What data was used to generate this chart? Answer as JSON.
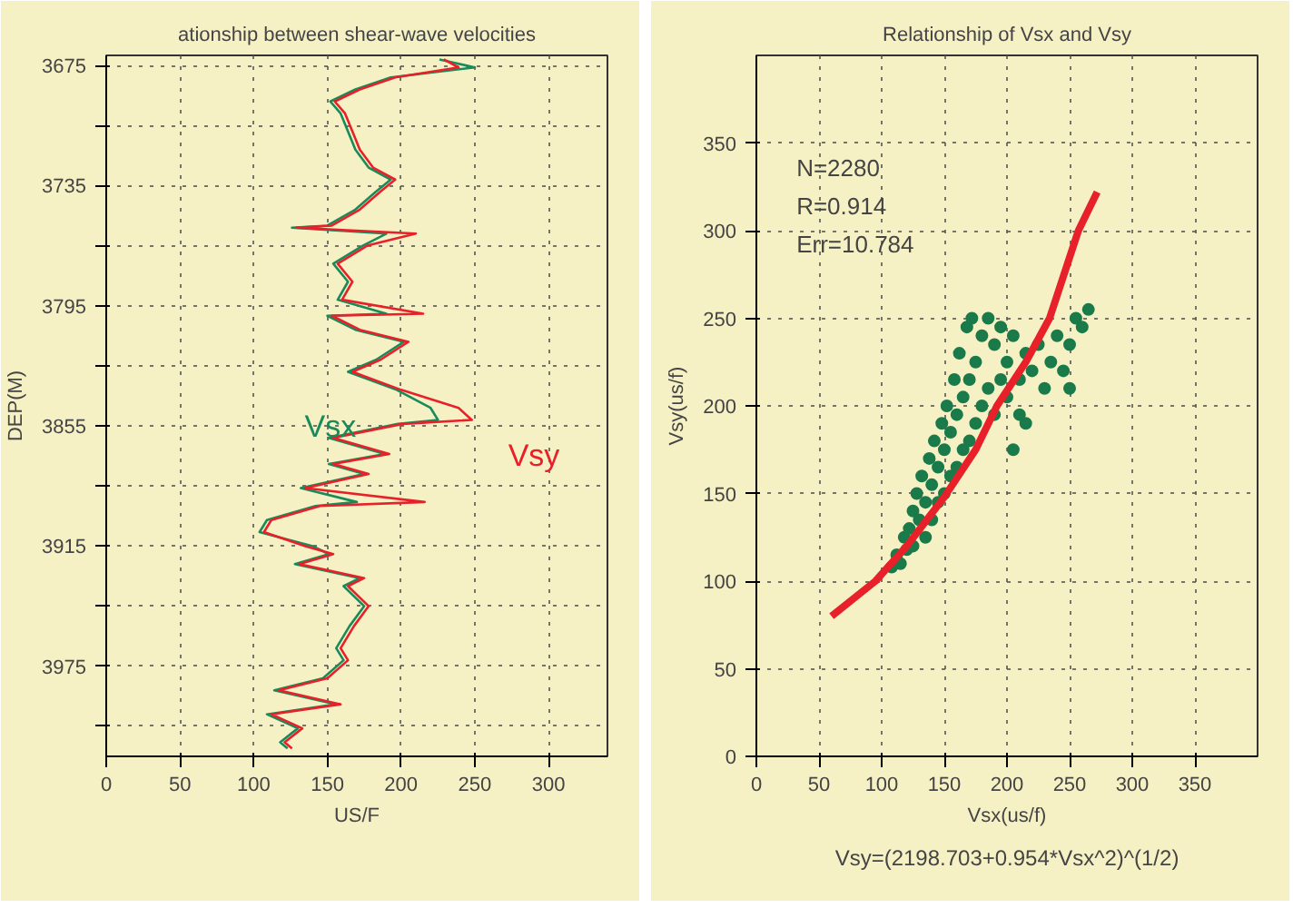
{
  "chart_data": [
    {
      "type": "line",
      "title": "ationship between shear-wave velocities",
      "xlabel": "US/F",
      "ylabel": "DEP(M)",
      "xlim": [
        0,
        340
      ],
      "ylim": [
        4020,
        3670
      ],
      "xticks": [
        0,
        50,
        100,
        150,
        200,
        250,
        300
      ],
      "yticks": [
        3675,
        {
          "value": 3705,
          "label": null
        },
        3735,
        {
          "value": 3765,
          "label": null
        },
        3795,
        {
          "value": 3825,
          "label": null
        },
        3855,
        {
          "value": 3885,
          "label": null
        },
        3915,
        {
          "value": 3945,
          "label": null
        },
        3975,
        {
          "value": 4005,
          "label": null
        }
      ],
      "grid": true,
      "line_style": "solid",
      "marker": "none",
      "series": [
        {
          "name": "Vsx",
          "color": "#1a8a5a",
          "x": [
            226,
            250,
            193,
            169,
            152,
            159,
            164,
            169,
            178,
            193,
            183,
            169,
            150,
            126,
            190,
            174,
            154,
            164,
            157,
            190,
            150,
            169,
            202,
            183,
            164,
            197,
            220,
            225,
            198,
            151,
            189,
            151,
            175,
            132,
            170,
            142,
            109,
            104,
            140,
            151,
            128,
            172,
            161,
            175,
            165,
            156,
            161,
            147,
            114,
            156,
            109,
            130,
            118,
            123
          ],
          "values": [
            3672,
            3676,
            3681,
            3687,
            3693,
            3699,
            3708,
            3717,
            3726,
            3732,
            3738,
            3747,
            3755,
            3756,
            3759,
            3765,
            3774,
            3783,
            3792,
            3799,
            3800,
            3807,
            3813,
            3822,
            3828,
            3837,
            3846,
            3852,
            3854,
            3861,
            3869,
            3874,
            3879,
            3886,
            3893,
            3895,
            3902,
            3908,
            3915,
            3919,
            3924,
            3931,
            3935,
            3945,
            3955,
            3966,
            3972,
            3981,
            3987,
            3994,
            3999,
            4006,
            4013,
            4016
          ]
        },
        {
          "name": "Vsy",
          "color": "#e8202a",
          "x": [
            229,
            239,
            196,
            172,
            155,
            162,
            167,
            172,
            181,
            196,
            186,
            172,
            153,
            129,
            210,
            177,
            157,
            167,
            160,
            215,
            153,
            172,
            205,
            186,
            167,
            200,
            239,
            248,
            201,
            154,
            192,
            154,
            178,
            135,
            216,
            145,
            112,
            107,
            135,
            154,
            131,
            175,
            164,
            178,
            168,
            159,
            164,
            150,
            117,
            159,
            112,
            133,
            121,
            126
          ],
          "values": [
            3672,
            3676,
            3681,
            3687,
            3693,
            3699,
            3708,
            3717,
            3726,
            3732,
            3738,
            3747,
            3755,
            3756,
            3759,
            3765,
            3774,
            3783,
            3792,
            3799,
            3800,
            3807,
            3813,
            3822,
            3828,
            3837,
            3846,
            3852,
            3854,
            3861,
            3869,
            3874,
            3879,
            3886,
            3893,
            3895,
            3902,
            3908,
            3915,
            3919,
            3924,
            3931,
            3935,
            3945,
            3955,
            3966,
            3972,
            3981,
            3987,
            3994,
            3999,
            4006,
            4013,
            4016
          ]
        }
      ]
    },
    {
      "type": "scatter",
      "title": "Relationship of Vsx and Vsy",
      "xlabel": "Vsx(us/f)",
      "ylabel": "Vsy(us/f)",
      "xlim": [
        0,
        400
      ],
      "ylim": [
        0,
        400
      ],
      "xticks": [
        0,
        50,
        100,
        150,
        200,
        250,
        300,
        350
      ],
      "yticks": [
        0,
        50,
        100,
        150,
        200,
        250,
        300,
        350
      ],
      "grid": true,
      "annotations": [
        "N=2280",
        "R=0.914",
        "Err=10.784",
        "Vsy=(2198.703+0.954*Vsx^2)^(1/2)"
      ],
      "series": [
        {
          "color": "#1a7a4a",
          "marker": "circle",
          "x": [
            108,
            112,
            115,
            118,
            120,
            122,
            125,
            125,
            128,
            130,
            132,
            135,
            135,
            138,
            140,
            140,
            142,
            145,
            145,
            148,
            150,
            150,
            152,
            155,
            155,
            158,
            160,
            160,
            162,
            165,
            165,
            168,
            170,
            170,
            172,
            175,
            175,
            180,
            180,
            185,
            185,
            190,
            190,
            195,
            195,
            200,
            200,
            205,
            205,
            210,
            210,
            215,
            215,
            220,
            225,
            230,
            235,
            240,
            245,
            250,
            250,
            255,
            260,
            265
          ],
          "values": [
            108,
            115,
            110,
            125,
            118,
            130,
            140,
            120,
            150,
            135,
            160,
            145,
            125,
            170,
            155,
            135,
            180,
            165,
            145,
            190,
            175,
            150,
            200,
            185,
            160,
            215,
            195,
            165,
            230,
            205,
            175,
            245,
            215,
            180,
            250,
            225,
            190,
            240,
            200,
            250,
            210,
            235,
            195,
            245,
            215,
            225,
            205,
            240,
            175,
            215,
            195,
            230,
            190,
            220,
            235,
            210,
            225,
            240,
            220,
            235,
            210,
            250,
            245,
            255
          ]
        },
        {
          "type": "line",
          "color": "#e8202a",
          "x": [
            60,
            95,
            120,
            150,
            175,
            192,
            215,
            234,
            257,
            272
          ],
          "values": [
            80,
            100,
            120,
            148,
            175,
            200,
            225,
            250,
            300,
            322
          ]
        }
      ]
    }
  ]
}
